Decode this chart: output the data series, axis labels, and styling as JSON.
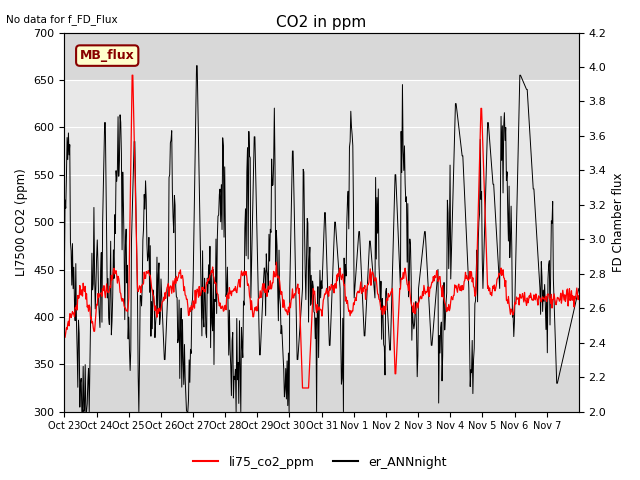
{
  "title": "CO2 in ppm",
  "top_left_text": "No data for f_FD_Flux",
  "ylabel_left": "LI7500 CO2 (ppm)",
  "ylabel_right": "FD Chamber flux",
  "ylim_left": [
    300,
    700
  ],
  "ylim_right": [
    2.0,
    4.2
  ],
  "xtick_labels": [
    "Oct 23",
    "Oct 24",
    "Oct 25",
    "Oct 26",
    "Oct 27",
    "Oct 28",
    "Oct 29",
    "Oct 30",
    "Oct 31",
    "Nov 1",
    "Nov 2",
    "Nov 3",
    "Nov 4",
    "Nov 5",
    "Nov 6",
    "Nov 7"
  ],
  "legend_labels": [
    "li75_co2_ppm",
    "er_ANNnight"
  ],
  "legend_colors": [
    "#ff0000",
    "#000000"
  ],
  "inset_label": "MB_flux",
  "inset_bg": "#ffffcc",
  "inset_border": "#880000",
  "plot_bg_outer": "#d8d8d8",
  "plot_bg_inner": "#e8e8e8",
  "fig_bg": "#ffffff"
}
